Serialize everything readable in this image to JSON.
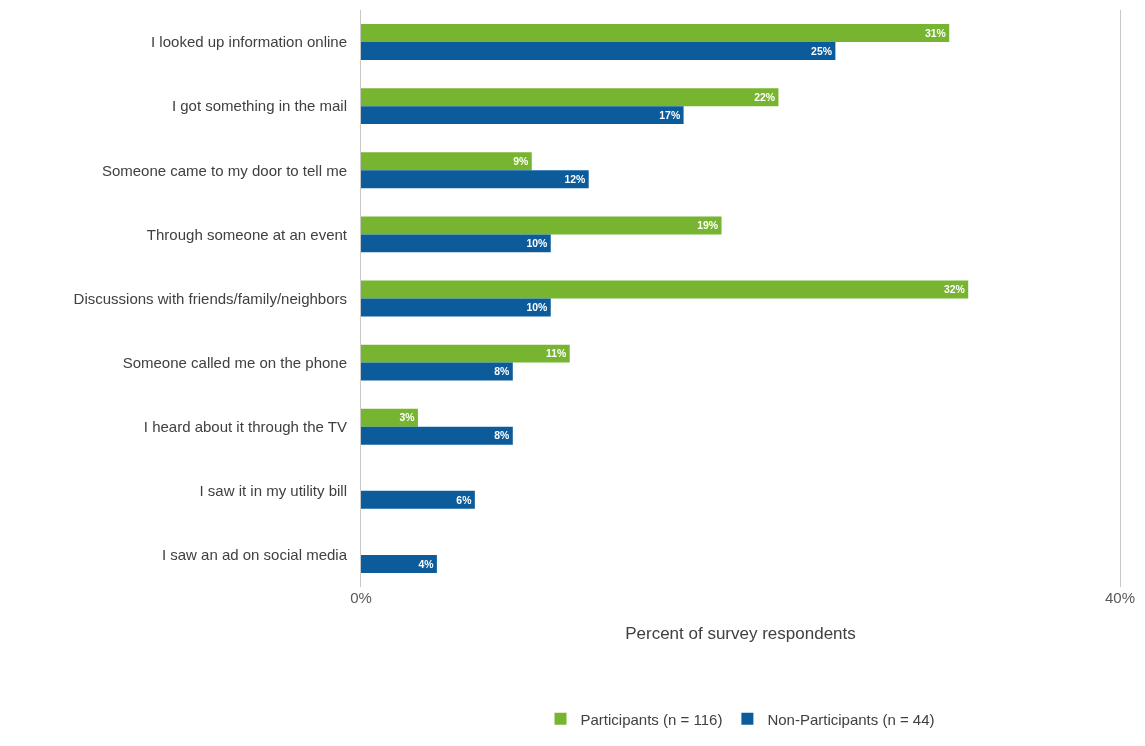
{
  "chart_data": {
    "type": "bar",
    "orientation": "horizontal",
    "xlabel": "Percent of survey respondents",
    "categories": [
      "I looked up information online",
      "I got something in the mail",
      "Someone came to my door to tell me",
      "Through someone at an event",
      "Discussions with friends/family/neighbors",
      "Someone called me on the phone",
      "I heard about it through the TV",
      "I saw it in my utility bill",
      "I saw an ad on social media"
    ],
    "series": [
      {
        "name": "Participants (n = 116)",
        "color": "#77b531",
        "values": [
          31,
          22,
          9,
          19,
          32,
          11,
          3,
          null,
          null
        ],
        "value_labels": [
          "31%",
          "22%",
          "9%",
          "19%",
          "32%",
          "11%",
          "3%",
          null,
          null
        ]
      },
      {
        "name": "Non-Participants (n = 44)",
        "color": "#0c5c9c",
        "values": [
          25,
          17,
          12,
          10,
          10,
          8,
          8,
          6,
          4
        ],
        "value_labels": [
          "25%",
          "17%",
          "12%",
          "10%",
          "10%",
          "8%",
          "8%",
          "6%",
          "4%"
        ]
      }
    ],
    "xlim": [
      0,
      40
    ],
    "xticks": [
      {
        "value": 0,
        "label": "0%"
      },
      {
        "value": 40,
        "label": "40%"
      }
    ],
    "legend": "bottom"
  }
}
